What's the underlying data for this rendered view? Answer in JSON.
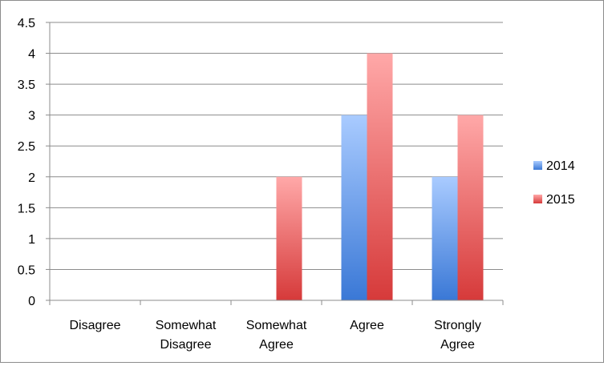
{
  "chart_data": {
    "type": "bar",
    "categories": [
      [
        "Disagree"
      ],
      [
        "Somewhat",
        "Disagree"
      ],
      [
        "Somewhat",
        "Agree"
      ],
      [
        "Agree"
      ],
      [
        "Strongly",
        "Agree"
      ]
    ],
    "series": [
      {
        "name": "2014",
        "values": [
          0,
          0,
          0,
          3,
          2
        ],
        "color_top": "#a9cbff",
        "color_bottom": "#3a78d6"
      },
      {
        "name": "2015",
        "values": [
          0,
          0,
          2,
          4,
          3
        ],
        "color_top": "#ffa8a8",
        "color_bottom": "#d63a3a"
      }
    ],
    "ylim": [
      0,
      4.5
    ],
    "yticks": [
      "0",
      "0.5",
      "1",
      "1.5",
      "2",
      "2.5",
      "3",
      "3.5",
      "4",
      "4.5"
    ],
    "grid": true,
    "legend_position": "right",
    "title": "",
    "xlabel": "",
    "ylabel": ""
  }
}
